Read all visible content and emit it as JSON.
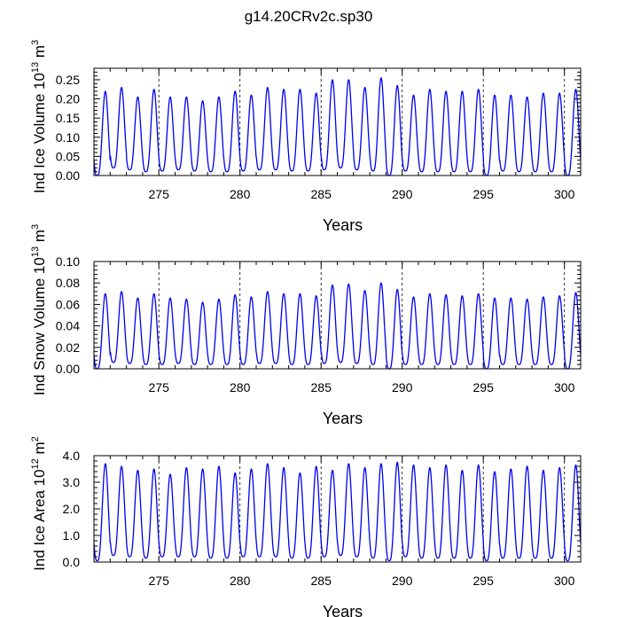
{
  "title": "g14.20CRv2c.sp30",
  "colors": {
    "series": "#0000ee",
    "frame": "#000000",
    "vline": "#000000"
  },
  "chart_data": [
    {
      "id": "ice-volume",
      "type": "line",
      "xlabel": "Years",
      "ylabel": {
        "main": "Ind Ice Volume 10",
        "exp": "13",
        "unit": " m",
        "unit_exp": "3"
      },
      "xlim": [
        271,
        301
      ],
      "ylim": [
        0,
        0.28
      ],
      "xticks": [
        275,
        280,
        285,
        290,
        295,
        300
      ],
      "xtick_labels": [
        "275",
        "280",
        "285",
        "290",
        "295",
        "300"
      ],
      "yticks": [
        0,
        0.05,
        0.1,
        0.15,
        0.2,
        0.25
      ],
      "ytick_labels": [
        "0.00",
        "0.05",
        "0.10",
        "0.15",
        "0.20",
        "0.25"
      ],
      "dashed_vlines": [
        275,
        280,
        285,
        290,
        295,
        300
      ],
      "series": [
        {
          "name": "Ind Ice Volume",
          "cycle_start": 271,
          "trough_phase": 0.2,
          "annual_peaks": [
            0.22,
            0.23,
            0.205,
            0.225,
            0.205,
            0.205,
            0.195,
            0.205,
            0.22,
            0.21,
            0.23,
            0.225,
            0.225,
            0.215,
            0.25,
            0.25,
            0.23,
            0.255,
            0.235,
            0.21,
            0.225,
            0.22,
            0.22,
            0.225,
            0.21,
            0.21,
            0.205,
            0.215,
            0.215,
            0.225
          ],
          "annual_troughs": [
            0.0,
            0.02,
            0.015,
            0.01,
            0.012,
            0.015,
            0.012,
            0.01,
            0.01,
            0.012,
            0.015,
            0.015,
            0.012,
            0.012,
            0.015,
            0.02,
            0.015,
            0.012,
            0.0,
            0.012,
            0.01,
            0.01,
            0.01,
            0.01,
            0.0,
            0.012,
            0.01,
            0.01,
            0.01,
            0.0
          ]
        }
      ]
    },
    {
      "id": "snow-volume",
      "type": "line",
      "xlabel": "Years",
      "ylabel": {
        "main": "Ind Snow Volume 10",
        "exp": "13",
        "unit": " m",
        "unit_exp": "3"
      },
      "xlim": [
        271,
        301
      ],
      "ylim": [
        0,
        0.1
      ],
      "xticks": [
        275,
        280,
        285,
        290,
        295,
        300
      ],
      "xtick_labels": [
        "275",
        "280",
        "285",
        "290",
        "295",
        "300"
      ],
      "yticks": [
        0,
        0.02,
        0.04,
        0.06,
        0.08,
        0.1
      ],
      "ytick_labels": [
        "0.00",
        "0.02",
        "0.04",
        "0.06",
        "0.08",
        "0.10"
      ],
      "dashed_vlines": [
        275,
        280,
        285,
        290,
        295,
        300
      ],
      "series": [
        {
          "name": "Ind Snow Volume",
          "cycle_start": 271,
          "trough_phase": 0.2,
          "annual_peaks": [
            0.07,
            0.072,
            0.066,
            0.07,
            0.066,
            0.065,
            0.062,
            0.065,
            0.069,
            0.067,
            0.072,
            0.07,
            0.07,
            0.068,
            0.078,
            0.079,
            0.073,
            0.08,
            0.074,
            0.067,
            0.07,
            0.069,
            0.068,
            0.07,
            0.066,
            0.066,
            0.065,
            0.067,
            0.068,
            0.071
          ],
          "annual_troughs": [
            0.0,
            0.006,
            0.005,
            0.004,
            0.004,
            0.005,
            0.004,
            0.004,
            0.004,
            0.004,
            0.005,
            0.005,
            0.004,
            0.004,
            0.005,
            0.006,
            0.005,
            0.004,
            0.0,
            0.004,
            0.004,
            0.004,
            0.004,
            0.004,
            0.0,
            0.004,
            0.004,
            0.004,
            0.004,
            0.0
          ]
        }
      ]
    },
    {
      "id": "ice-area",
      "type": "line",
      "xlabel": "Years",
      "ylabel": {
        "main": "Ind Ice Area 10",
        "exp": "12",
        "unit": " m",
        "unit_exp": "2"
      },
      "xlim": [
        271,
        301
      ],
      "ylim": [
        0,
        4.0
      ],
      "xticks": [
        275,
        280,
        285,
        290,
        295,
        300
      ],
      "xtick_labels": [
        "275",
        "280",
        "285",
        "290",
        "295",
        "300"
      ],
      "yticks": [
        0,
        1.0,
        2.0,
        3.0,
        4.0
      ],
      "ytick_labels": [
        "0.0",
        "1.0",
        "2.0",
        "3.0",
        "4.0"
      ],
      "dashed_vlines": [
        275,
        280,
        285,
        290,
        295,
        300
      ],
      "series": [
        {
          "name": "Ind Ice Area",
          "cycle_start": 271,
          "trough_phase": 0.2,
          "annual_peaks": [
            3.7,
            3.6,
            3.45,
            3.5,
            3.3,
            3.55,
            3.5,
            3.6,
            3.35,
            3.5,
            3.7,
            3.55,
            3.35,
            3.6,
            3.45,
            3.7,
            3.55,
            3.7,
            3.75,
            3.65,
            3.55,
            3.65,
            3.45,
            3.65,
            3.4,
            3.5,
            3.6,
            3.45,
            3.55,
            3.65
          ],
          "annual_troughs": [
            0.05,
            0.25,
            0.2,
            0.15,
            0.2,
            0.2,
            0.2,
            0.15,
            0.15,
            0.2,
            0.2,
            0.2,
            0.15,
            0.15,
            0.2,
            0.25,
            0.2,
            0.15,
            0.05,
            0.2,
            0.15,
            0.15,
            0.15,
            0.15,
            0.05,
            0.15,
            0.15,
            0.15,
            0.15,
            0.05
          ]
        }
      ]
    }
  ]
}
